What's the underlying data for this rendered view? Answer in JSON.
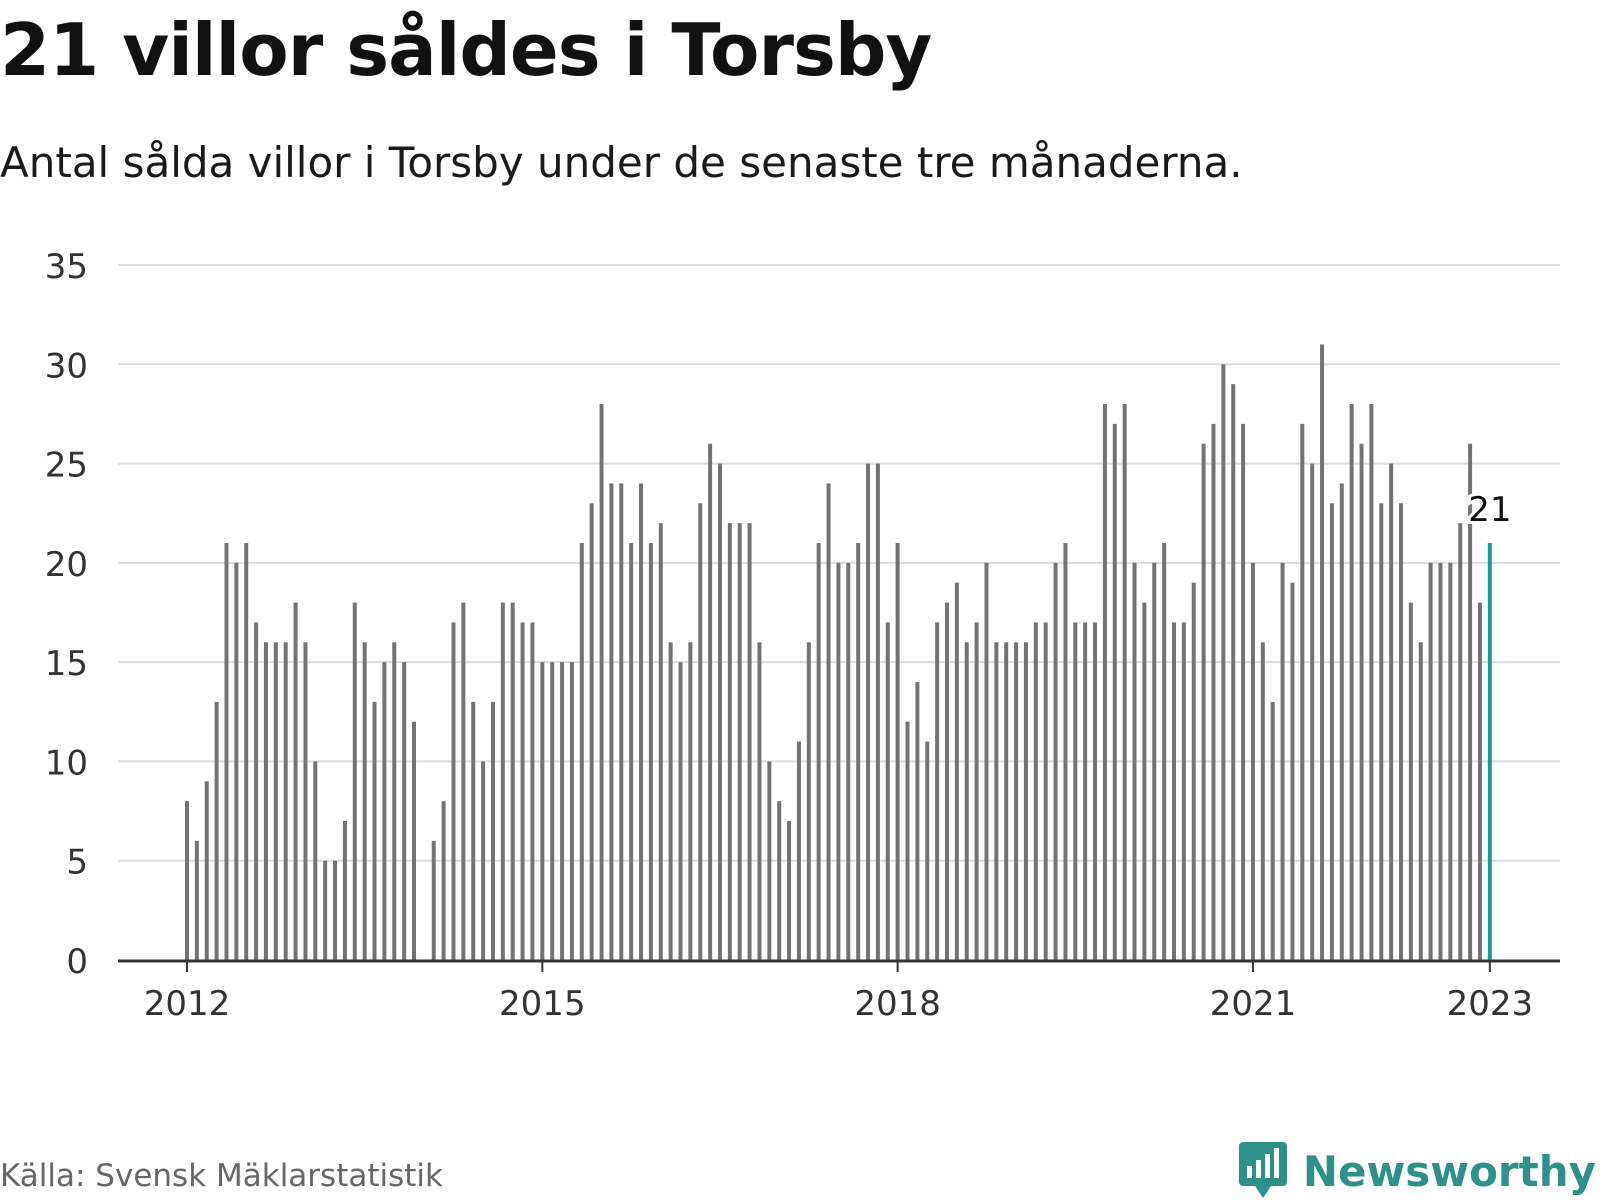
{
  "header": {
    "title": "21 villor såldes i Torsby",
    "subtitle": "Antal sålda villor i Torsby under de senaste tre månaderna."
  },
  "footer": {
    "source": "Källa: Svensk Mäklarstatistik",
    "brand": "Newsworthy",
    "brand_icon": "bar-chart-speech-bubble-icon"
  },
  "colors": {
    "bar": "#737373",
    "highlight": "#1a9e93",
    "grid": "#dddddd",
    "axis": "#333333",
    "brand": "#2e9189"
  },
  "chart_data": {
    "type": "bar",
    "title": "21 villor såldes i Torsby",
    "subtitle": "Antal sålda villor i Torsby under de senaste tre månaderna.",
    "x_start": "2012-01",
    "x_ticks": [
      "2012",
      "2015",
      "2018",
      "2021",
      "2023"
    ],
    "y_ticks": [
      0,
      5,
      10,
      15,
      20,
      25,
      30,
      35
    ],
    "ylim": [
      0,
      35
    ],
    "grid": true,
    "values": [
      8,
      6,
      9,
      13,
      21,
      20,
      21,
      17,
      16,
      16,
      16,
      18,
      16,
      10,
      5,
      5,
      7,
      18,
      16,
      13,
      15,
      16,
      15,
      12,
      null,
      6,
      8,
      17,
      18,
      13,
      10,
      13,
      18,
      18,
      17,
      17,
      15,
      15,
      15,
      15,
      21,
      23,
      28,
      24,
      24,
      21,
      24,
      21,
      22,
      16,
      15,
      16,
      23,
      26,
      25,
      22,
      22,
      22,
      16,
      10,
      8,
      7,
      11,
      16,
      21,
      24,
      20,
      20,
      21,
      25,
      25,
      17,
      21,
      12,
      14,
      11,
      17,
      18,
      19,
      16,
      17,
      20,
      16,
      16,
      16,
      16,
      17,
      17,
      20,
      21,
      17,
      17,
      17,
      28,
      27,
      28,
      20,
      18,
      20,
      21,
      17,
      17,
      19,
      26,
      27,
      30,
      29,
      27,
      20,
      16,
      13,
      20,
      19,
      27,
      25,
      31,
      23,
      24,
      28,
      26,
      28,
      23,
      25,
      23,
      18,
      16,
      20,
      20,
      20,
      22,
      26,
      18,
      21
    ],
    "highlight_last": true,
    "annotation": "21"
  }
}
